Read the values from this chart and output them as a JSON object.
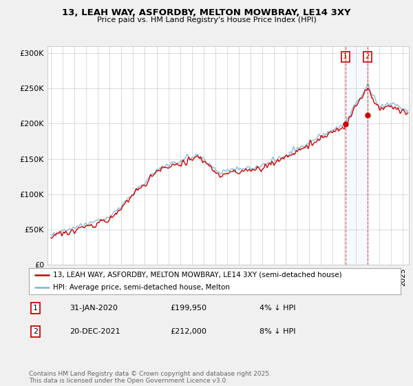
{
  "title": "13, LEAH WAY, ASFORDBY, MELTON MOWBRAY, LE14 3XY",
  "subtitle": "Price paid vs. HM Land Registry's House Price Index (HPI)",
  "legend_line1": "13, LEAH WAY, ASFORDBY, MELTON MOWBRAY, LE14 3XY (semi-detached house)",
  "legend_line2": "HPI: Average price, semi-detached house, Melton",
  "footer": "Contains HM Land Registry data © Crown copyright and database right 2025.\nThis data is licensed under the Open Government Licence v3.0.",
  "transaction1_label": "1",
  "transaction1_date": "31-JAN-2020",
  "transaction1_price": "£199,950",
  "transaction1_note": "4% ↓ HPI",
  "transaction2_label": "2",
  "transaction2_date": "20-DEC-2021",
  "transaction2_price": "£212,000",
  "transaction2_note": "8% ↓ HPI",
  "hpi_color": "#7ab4d8",
  "price_color": "#cc0000",
  "vline_color": "#cc0000",
  "background_color": "#f0f0f0",
  "plot_bg_color": "#ffffff",
  "grid_color": "#cccccc",
  "yticks": [
    0,
    50000,
    100000,
    150000,
    200000,
    250000,
    300000
  ],
  "ylabels": [
    "£0",
    "£50K",
    "£100K",
    "£150K",
    "£200K",
    "£250K",
    "£300K"
  ],
  "ymin": 0,
  "ymax": 310000,
  "xmin": 1994.7,
  "xmax": 2025.5,
  "transaction1_x": 2020.08,
  "transaction2_x": 2021.97
}
